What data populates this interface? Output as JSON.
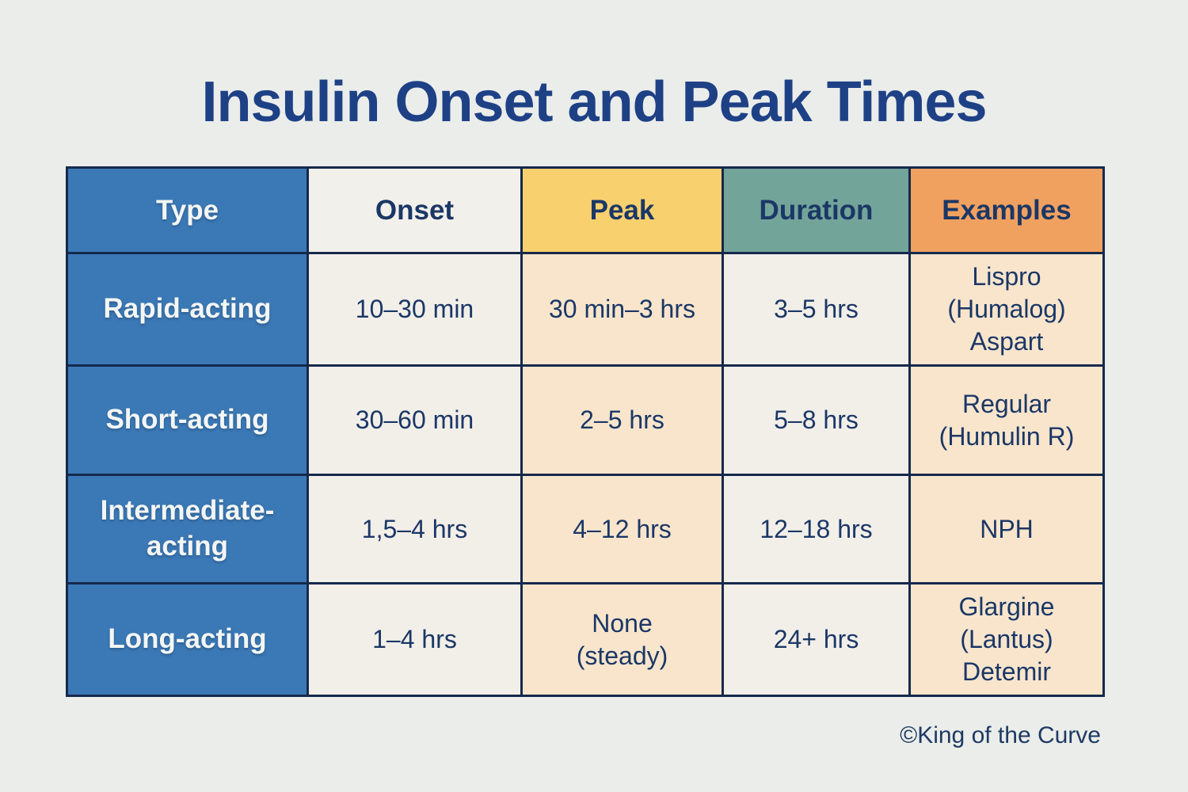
{
  "title": "Insulin Onset and Peak Times",
  "credit": "©King of the Curve",
  "colors": {
    "page_background": "#ebedea",
    "type_column_blue": "#3b79b6",
    "onset_header_offwhite": "#f2f0ea",
    "peak_header_yellow": "#f9d06e",
    "duration_header_green": "#73a499",
    "examples_header_orange": "#f0a160",
    "light_cell": "#f2efe9",
    "peach_cell": "#f8e5cc",
    "border_navy": "#16294c",
    "text_navy": "#1b3766",
    "title_blue": "#1e4186",
    "white_text": "#f4f6f4"
  },
  "table": {
    "columns": [
      {
        "key": "type",
        "label": "Type"
      },
      {
        "key": "onset",
        "label": "Onset"
      },
      {
        "key": "peak",
        "label": "Peak"
      },
      {
        "key": "duration",
        "label": "Duration"
      },
      {
        "key": "examples",
        "label": "Examples"
      }
    ],
    "rows": [
      {
        "type": "Rapid-acting",
        "onset": "10–30 min",
        "peak": "30 min–3 hrs",
        "duration": "3–5 hrs",
        "examples": "Lispro\n(Humalog)\nAspart"
      },
      {
        "type": "Short-acting",
        "onset": "30–60 min",
        "peak": "2–5 hrs",
        "duration": "5–8 hrs",
        "examples": "Regular\n(Humulin R)"
      },
      {
        "type": "Intermediate-\nacting",
        "onset": "1,5–4 hrs",
        "peak": "4–12 hrs",
        "duration": "12–18 hrs",
        "examples": "NPH"
      },
      {
        "type": "Long-acting",
        "onset": "1–4 hrs",
        "peak": "None\n(steady)",
        "duration": "24+ hrs",
        "examples": "Glargine\n(Lantus)\nDetemir"
      }
    ]
  },
  "chart_data": {
    "type": "table",
    "title": "Insulin Onset and Peak Times",
    "columns": [
      "Type",
      "Onset",
      "Peak",
      "Duration",
      "Examples"
    ],
    "rows": [
      [
        "Rapid-acting",
        "10–30 min",
        "30 min–3 hrs",
        "3–5 hrs",
        "Lispro (Humalog) Aspart"
      ],
      [
        "Short-acting",
        "30–60 min",
        "2–5 hrs",
        "5–8 hrs",
        "Regular (Humulin R)"
      ],
      [
        "Intermediate-acting",
        "1,5–4 hrs",
        "4–12 hrs",
        "12–18 hrs",
        "NPH"
      ],
      [
        "Long-acting",
        "1–4 hrs",
        "None (steady)",
        "24+ hrs",
        "Glargine (Lantus) Detemir"
      ]
    ]
  }
}
